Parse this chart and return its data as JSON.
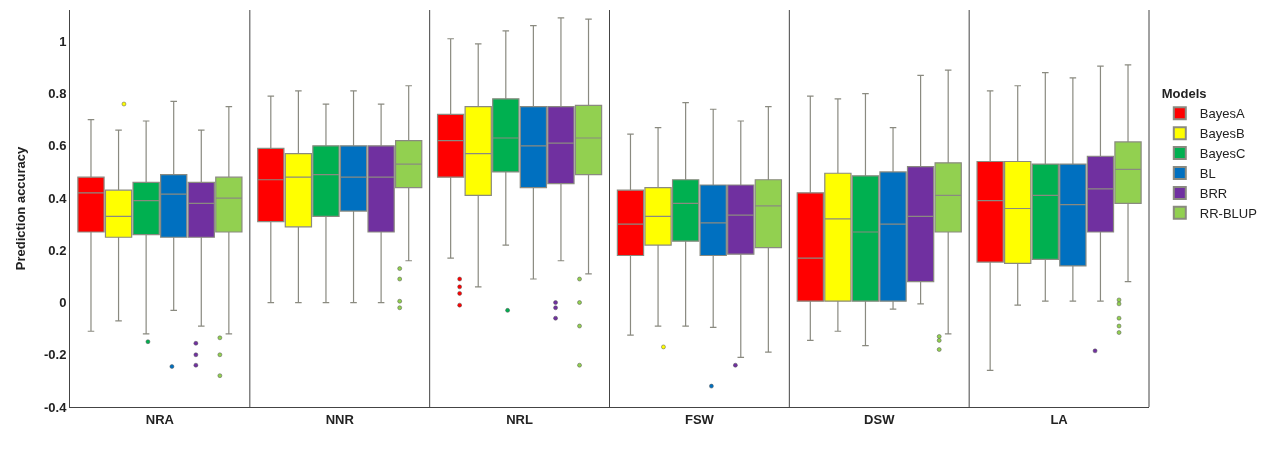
{
  "chart_data": {
    "type": "box",
    "ylabel": "Prediction accuracy",
    "legend_title": "Models",
    "categories": [
      "NRA",
      "NNR",
      "NRL",
      "FSW",
      "DSW",
      "LA"
    ],
    "ylim": [
      -0.4,
      1.12
    ],
    "yticks": [
      -0.4,
      -0.2,
      0,
      0.2,
      0.4,
      0.6,
      0.8,
      1
    ],
    "grid": "x",
    "legend": "right",
    "series": [
      {
        "name": "BayesA",
        "color": "#ff0000",
        "boxes": [
          {
            "low": -0.11,
            "q1": 0.27,
            "median": 0.42,
            "q3": 0.48,
            "high": 0.7
          },
          {
            "low": 0.0,
            "q1": 0.31,
            "median": 0.47,
            "q3": 0.59,
            "high": 0.79
          },
          {
            "low": 0.17,
            "q1": 0.48,
            "median": 0.62,
            "q3": 0.72,
            "high": 1.01,
            "outliers": [
              0.09,
              0.06,
              0.035,
              -0.01
            ]
          },
          {
            "low": -0.125,
            "q1": 0.18,
            "median": 0.3,
            "q3": 0.43,
            "high": 0.645
          },
          {
            "low": -0.145,
            "q1": 0.005,
            "median": 0.17,
            "q3": 0.42,
            "high": 0.79
          },
          {
            "low": -0.26,
            "q1": 0.155,
            "median": 0.39,
            "q3": 0.54,
            "high": 0.81
          }
        ]
      },
      {
        "name": "BayesB",
        "color": "#ffff00",
        "boxes": [
          {
            "low": -0.07,
            "q1": 0.25,
            "median": 0.33,
            "q3": 0.43,
            "high": 0.66,
            "outliers": [
              0.76
            ]
          },
          {
            "low": 0.0,
            "q1": 0.29,
            "median": 0.48,
            "q3": 0.57,
            "high": 0.81
          },
          {
            "low": 0.06,
            "q1": 0.41,
            "median": 0.57,
            "q3": 0.75,
            "high": 0.99
          },
          {
            "low": -0.09,
            "q1": 0.22,
            "median": 0.33,
            "q3": 0.44,
            "high": 0.67,
            "outliers": [
              -0.17
            ]
          },
          {
            "low": -0.11,
            "q1": 0.005,
            "median": 0.32,
            "q3": 0.495,
            "high": 0.78
          },
          {
            "low": -0.01,
            "q1": 0.15,
            "median": 0.36,
            "q3": 0.54,
            "high": 0.83
          }
        ]
      },
      {
        "name": "BayesC",
        "color": "#00b050",
        "boxes": [
          {
            "low": -0.12,
            "q1": 0.26,
            "median": 0.39,
            "q3": 0.46,
            "high": 0.695,
            "outliers": [
              -0.15
            ]
          },
          {
            "low": 0.0,
            "q1": 0.33,
            "median": 0.49,
            "q3": 0.6,
            "high": 0.76
          },
          {
            "low": 0.22,
            "q1": 0.5,
            "median": 0.63,
            "q3": 0.78,
            "high": 1.04,
            "outliers": [
              -0.03
            ]
          },
          {
            "low": -0.09,
            "q1": 0.235,
            "median": 0.38,
            "q3": 0.47,
            "high": 0.765
          },
          {
            "low": -0.165,
            "q1": 0.005,
            "median": 0.27,
            "q3": 0.485,
            "high": 0.8
          },
          {
            "low": 0.005,
            "q1": 0.165,
            "median": 0.41,
            "q3": 0.53,
            "high": 0.88
          }
        ]
      },
      {
        "name": "BL",
        "color": "#0070c0",
        "boxes": [
          {
            "low": -0.03,
            "q1": 0.25,
            "median": 0.415,
            "q3": 0.49,
            "high": 0.77,
            "outliers": [
              -0.245
            ]
          },
          {
            "low": 0.0,
            "q1": 0.35,
            "median": 0.48,
            "q3": 0.6,
            "high": 0.81
          },
          {
            "low": 0.09,
            "q1": 0.44,
            "median": 0.6,
            "q3": 0.75,
            "high": 1.06
          },
          {
            "low": -0.095,
            "q1": 0.18,
            "median": 0.305,
            "q3": 0.45,
            "high": 0.74,
            "outliers": [
              -0.32
            ]
          },
          {
            "low": -0.025,
            "q1": 0.005,
            "median": 0.3,
            "q3": 0.5,
            "high": 0.67
          },
          {
            "low": 0.005,
            "q1": 0.14,
            "median": 0.375,
            "q3": 0.53,
            "high": 0.86
          }
        ]
      },
      {
        "name": "BRR",
        "color": "#7030a0",
        "boxes": [
          {
            "low": -0.09,
            "q1": 0.25,
            "median": 0.38,
            "q3": 0.46,
            "high": 0.66,
            "outliers": [
              -0.156,
              -0.2,
              -0.24
            ]
          },
          {
            "low": 0.0,
            "q1": 0.27,
            "median": 0.48,
            "q3": 0.6,
            "high": 0.76
          },
          {
            "low": 0.16,
            "q1": 0.455,
            "median": 0.61,
            "q3": 0.75,
            "high": 1.09,
            "outliers": [
              0.0,
              -0.02,
              -0.06
            ]
          },
          {
            "low": -0.21,
            "q1": 0.185,
            "median": 0.335,
            "q3": 0.45,
            "high": 0.695,
            "outliers": [
              -0.24
            ]
          },
          {
            "low": -0.005,
            "q1": 0.08,
            "median": 0.33,
            "q3": 0.52,
            "high": 0.87
          },
          {
            "low": 0.005,
            "q1": 0.27,
            "median": 0.435,
            "q3": 0.56,
            "high": 0.905,
            "outliers": [
              -0.185
            ]
          }
        ]
      },
      {
        "name": "RR-BLUP",
        "color": "#92d050",
        "boxes": [
          {
            "low": -0.12,
            "q1": 0.27,
            "median": 0.4,
            "q3": 0.48,
            "high": 0.75,
            "outliers": [
              -0.135,
              -0.2,
              -0.28
            ]
          },
          {
            "low": 0.16,
            "q1": 0.44,
            "median": 0.53,
            "q3": 0.62,
            "high": 0.83,
            "outliers": [
              0.13,
              0.09,
              0.005,
              -0.02
            ]
          },
          {
            "low": 0.11,
            "q1": 0.49,
            "median": 0.63,
            "q3": 0.755,
            "high": 1.085,
            "outliers": [
              0.09,
              0.0,
              -0.09,
              -0.24
            ]
          },
          {
            "low": -0.19,
            "q1": 0.21,
            "median": 0.37,
            "q3": 0.47,
            "high": 0.75
          },
          {
            "low": -0.12,
            "q1": 0.27,
            "median": 0.41,
            "q3": 0.535,
            "high": 0.89,
            "outliers": [
              -0.13,
              -0.145,
              -0.18
            ]
          },
          {
            "low": 0.08,
            "q1": 0.38,
            "median": 0.51,
            "q3": 0.615,
            "high": 0.91,
            "outliers": [
              0.01,
              -0.005,
              -0.06,
              -0.09,
              -0.115
            ]
          }
        ]
      }
    ]
  }
}
